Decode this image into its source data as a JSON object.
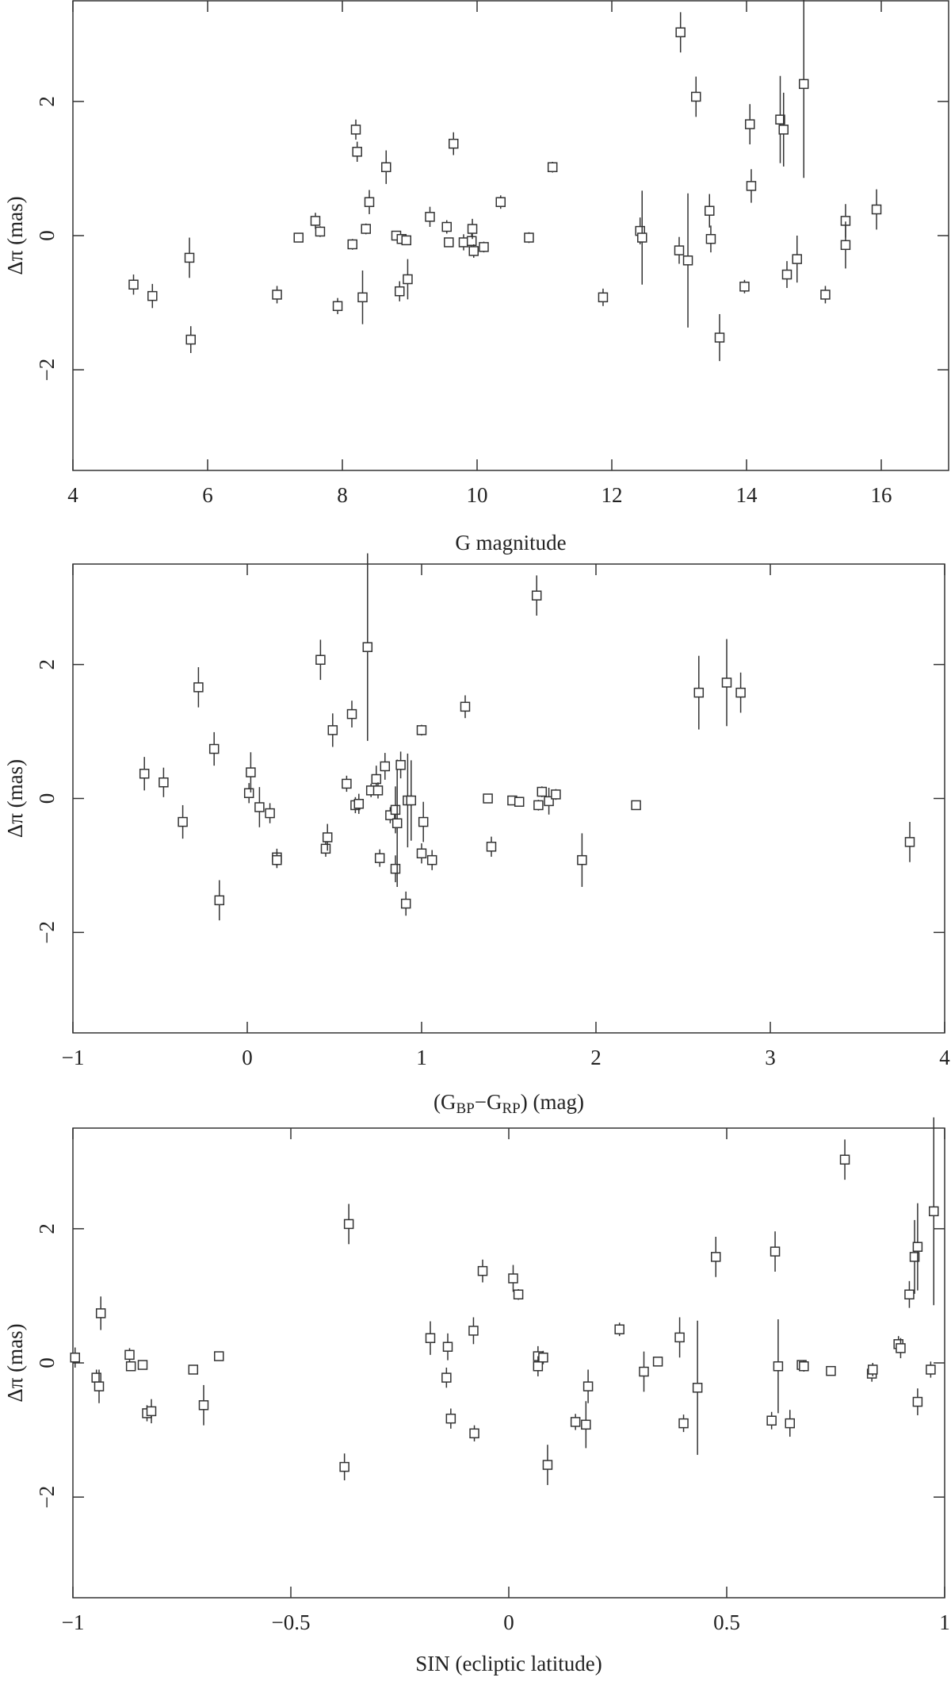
{
  "chart_data": [
    {
      "type": "scatter",
      "xlabel": "G magnitude",
      "ylabel": "Δπ (mas)",
      "xlim": [
        4,
        17
      ],
      "ylim": [
        -3.5,
        3.5
      ],
      "xticks": [
        4,
        6,
        8,
        10,
        12,
        14,
        16
      ],
      "yticks": [
        {
          "value": -2,
          "label": "−2"
        },
        0,
        2
      ],
      "x": [
        4.9,
        5.18,
        5.73,
        5.75,
        7.03,
        7.35,
        7.6,
        7.67,
        7.93,
        8.15,
        8.2,
        8.22,
        8.3,
        8.35,
        8.4,
        8.65,
        8.8,
        8.85,
        8.88,
        8.95,
        8.97,
        9.3,
        9.55,
        9.58,
        9.65,
        9.8,
        9.92,
        9.93,
        9.95,
        10.1,
        10.35,
        10.77,
        11.12,
        11.87,
        12.42,
        12.45,
        13.0,
        13.02,
        13.13,
        13.25,
        13.45,
        13.47,
        13.6,
        13.97,
        14.05,
        14.07,
        14.5,
        14.55,
        14.6,
        14.75,
        14.85,
        15.17,
        15.47,
        15.47,
        15.93
      ],
      "values": [
        -0.73,
        -0.9,
        -0.33,
        -1.55,
        -0.88,
        -0.03,
        0.22,
        0.06,
        -1.05,
        -0.13,
        1.58,
        1.25,
        -0.92,
        0.1,
        0.5,
        1.02,
        0.0,
        -0.83,
        -0.05,
        -0.07,
        -0.65,
        0.28,
        0.13,
        -0.1,
        1.37,
        -0.1,
        -0.08,
        0.1,
        -0.23,
        -0.17,
        0.5,
        -0.03,
        1.02,
        -0.92,
        0.07,
        -0.03,
        -0.22,
        3.03,
        -0.37,
        2.07,
        0.37,
        -0.05,
        -1.52,
        -0.76,
        1.66,
        0.74,
        1.73,
        1.58,
        -0.58,
        -0.35,
        2.26,
        -0.88,
        0.22,
        -0.14,
        0.39
      ],
      "errors": [
        0.15,
        0.18,
        0.3,
        0.2,
        0.13,
        0.05,
        0.12,
        0.08,
        0.12,
        0.08,
        0.15,
        0.15,
        0.4,
        0.08,
        0.18,
        0.25,
        0.06,
        0.15,
        0.06,
        0.06,
        0.3,
        0.15,
        0.1,
        0.06,
        0.17,
        0.12,
        0.12,
        0.15,
        0.1,
        0.08,
        0.1,
        0.08,
        0.08,
        0.13,
        0.2,
        0.7,
        0.2,
        0.3,
        1.0,
        0.3,
        0.25,
        0.2,
        0.35,
        0.1,
        0.3,
        0.25,
        0.65,
        0.55,
        0.2,
        0.35,
        1.4,
        0.13,
        0.25,
        0.35,
        0.3
      ]
    },
    {
      "type": "scatter",
      "xlabel": [
        {
          "text": "(G"
        },
        {
          "text": "BP",
          "sub": true
        },
        {
          "text": "−G"
        },
        {
          "text": "RP",
          "sub": true
        },
        {
          "text": ") (mag)"
        }
      ],
      "ylabel": "Δπ (mas)",
      "xlim": [
        -1,
        4
      ],
      "ylim": [
        -3.5,
        3.5
      ],
      "xticks": [
        {
          "value": -1,
          "label": "−1"
        },
        0,
        1,
        2,
        3,
        4
      ],
      "yticks": [
        {
          "value": -2,
          "label": "−2"
        },
        0,
        2
      ],
      "x": [
        -0.59,
        -0.48,
        -0.37,
        -0.28,
        -0.19,
        -0.16,
        0.01,
        0.02,
        0.07,
        0.13,
        0.17,
        0.17,
        0.42,
        0.45,
        0.46,
        0.49,
        0.57,
        0.6,
        0.62,
        0.64,
        0.69,
        0.71,
        0.74,
        0.75,
        0.76,
        0.79,
        0.82,
        0.85,
        0.85,
        0.86,
        0.88,
        0.91,
        0.92,
        0.94,
        1.0,
        1.0,
        1.01,
        1.06,
        1.25,
        1.38,
        1.4,
        1.52,
        1.56,
        1.66,
        1.67,
        1.69,
        1.73,
        1.77,
        1.92,
        2.23,
        2.59,
        2.75,
        2.83,
        3.8
      ],
      "values": [
        0.37,
        0.24,
        -0.35,
        1.66,
        0.74,
        -1.52,
        0.08,
        0.39,
        -0.13,
        -0.22,
        -0.88,
        -0.92,
        2.07,
        -0.75,
        -0.58,
        1.02,
        0.22,
        1.26,
        -0.1,
        -0.08,
        2.26,
        0.12,
        0.29,
        0.12,
        -0.89,
        0.48,
        -0.25,
        -1.05,
        -0.17,
        -0.37,
        0.5,
        -1.57,
        -0.03,
        -0.03,
        1.02,
        -0.82,
        -0.35,
        -0.92,
        1.37,
        0.0,
        -0.72,
        -0.03,
        -0.05,
        3.03,
        -0.1,
        0.1,
        -0.04,
        0.06,
        -0.92,
        -0.1,
        1.58,
        1.73,
        1.58,
        -0.65
      ],
      "errors": [
        0.25,
        0.22,
        0.25,
        0.3,
        0.25,
        0.3,
        0.15,
        0.3,
        0.3,
        0.15,
        0.13,
        0.12,
        0.3,
        0.12,
        0.2,
        0.25,
        0.12,
        0.2,
        0.12,
        0.15,
        1.4,
        0.1,
        0.2,
        0.12,
        0.13,
        0.2,
        0.12,
        0.2,
        0.35,
        0.95,
        0.2,
        0.18,
        0.7,
        0.6,
        0.08,
        0.15,
        0.3,
        0.15,
        0.17,
        0.06,
        0.15,
        0.06,
        0.06,
        0.3,
        0.08,
        0.08,
        0.2,
        0.08,
        0.4,
        0.06,
        0.55,
        0.65,
        0.3,
        0.3
      ]
    },
    {
      "type": "scatter",
      "xlabel": "SIN (ecliptic latitude)",
      "ylabel": "Δπ (mas)",
      "xlim": [
        -1,
        1
      ],
      "ylim": [
        -3.5,
        3.5
      ],
      "xticks": [
        {
          "value": -1,
          "label": "−1"
        },
        {
          "value": -0.5,
          "label": "−0.5"
        },
        0,
        0.5,
        1
      ],
      "yticks": [
        {
          "value": -2,
          "label": "−2"
        },
        0,
        2
      ],
      "x": [
        -0.995,
        -0.946,
        -0.94,
        -0.936,
        -0.87,
        -0.867,
        -0.84,
        -0.83,
        -0.82,
        -0.724,
        -0.7,
        -0.665,
        -0.377,
        -0.367,
        -0.18,
        -0.143,
        -0.14,
        -0.133,
        -0.081,
        -0.079,
        -0.06,
        0.01,
        0.022,
        0.067,
        0.067,
        0.079,
        0.089,
        0.153,
        0.177,
        0.182,
        0.254,
        0.31,
        0.342,
        0.392,
        0.401,
        0.433,
        0.475,
        0.603,
        0.611,
        0.618,
        0.645,
        0.672,
        0.677,
        0.739,
        0.771,
        0.833,
        0.835,
        0.894,
        0.899,
        0.919,
        0.931,
        0.938,
        0.938,
        0.968,
        0.975
      ],
      "values": [
        0.08,
        -0.22,
        -0.35,
        0.74,
        0.12,
        -0.05,
        -0.03,
        -0.75,
        -0.72,
        -0.1,
        -0.63,
        0.1,
        -1.55,
        2.07,
        0.37,
        -0.22,
        0.24,
        -0.83,
        0.48,
        -1.05,
        1.37,
        1.26,
        1.02,
        0.1,
        -0.05,
        0.08,
        -1.52,
        -0.88,
        -0.92,
        -0.35,
        0.5,
        -0.13,
        0.02,
        0.38,
        -0.9,
        -0.37,
        1.58,
        -0.86,
        1.66,
        -0.05,
        -0.9,
        -0.03,
        -0.05,
        -0.12,
        3.03,
        -0.16,
        -0.1,
        0.28,
        0.22,
        1.02,
        1.58,
        1.73,
        -0.58,
        -0.1,
        2.26
      ],
      "errors": [
        0.15,
        0.12,
        0.25,
        0.25,
        0.1,
        0.06,
        0.06,
        0.12,
        0.18,
        0.06,
        0.3,
        0.06,
        0.2,
        0.3,
        0.25,
        0.15,
        0.2,
        0.15,
        0.2,
        0.12,
        0.17,
        0.2,
        0.08,
        0.15,
        0.15,
        0.1,
        0.3,
        0.12,
        0.35,
        0.25,
        0.1,
        0.3,
        0.06,
        0.3,
        0.13,
        1.0,
        0.3,
        0.13,
        0.3,
        0.7,
        0.2,
        0.06,
        0.08,
        0.06,
        0.3,
        0.12,
        0.1,
        0.12,
        0.15,
        0.2,
        0.55,
        0.65,
        0.2,
        0.12,
        1.4
      ]
    }
  ]
}
